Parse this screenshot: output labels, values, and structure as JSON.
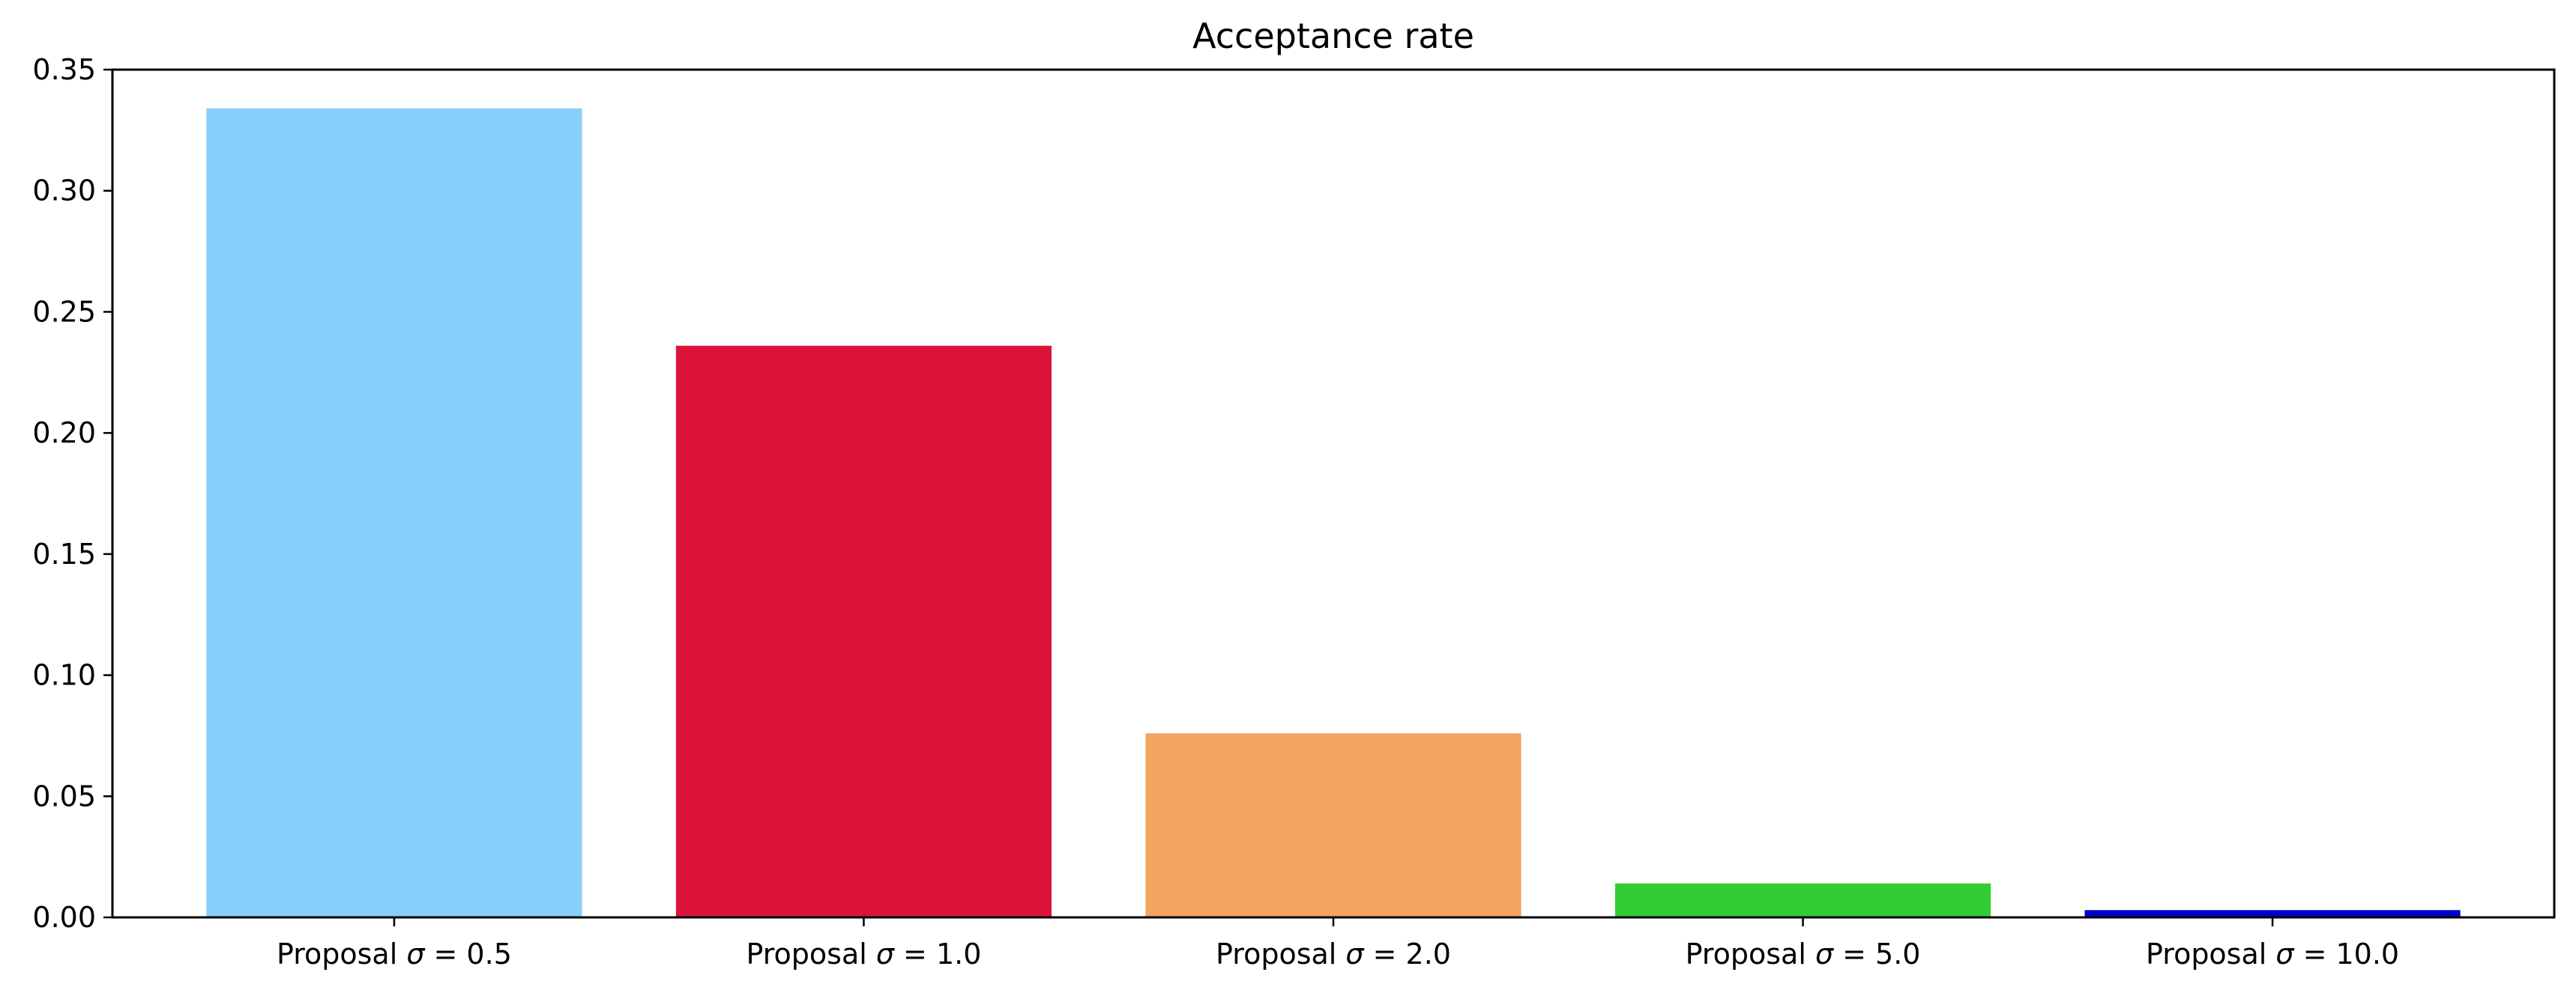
{
  "chart_data": {
    "type": "bar",
    "title": "Acceptance rate",
    "xlabel": "",
    "ylabel": "",
    "ylim": [
      0,
      0.35
    ],
    "yticks": [
      "0.00",
      "0.05",
      "0.10",
      "0.15",
      "0.20",
      "0.25",
      "0.30",
      "0.35"
    ],
    "ytick_values": [
      0,
      0.05,
      0.1,
      0.15,
      0.2,
      0.25,
      0.3,
      0.35
    ],
    "grid": false,
    "categories": [
      {
        "prefix": "Proposal ",
        "symbol": "σ",
        "suffix": " = 0.5"
      },
      {
        "prefix": "Proposal ",
        "symbol": "σ",
        "suffix": " = 1.0"
      },
      {
        "prefix": "Proposal ",
        "symbol": "σ",
        "suffix": " = 2.0"
      },
      {
        "prefix": "Proposal ",
        "symbol": "σ",
        "suffix": " = 5.0"
      },
      {
        "prefix": "Proposal ",
        "symbol": "σ",
        "suffix": " = 10.0"
      }
    ],
    "values": [
      0.334,
      0.236,
      0.076,
      0.014,
      0.003
    ],
    "colors": [
      "#87CEFA",
      "#DC143C",
      "#F4A460",
      "#32CD32",
      "#0000CD"
    ]
  }
}
